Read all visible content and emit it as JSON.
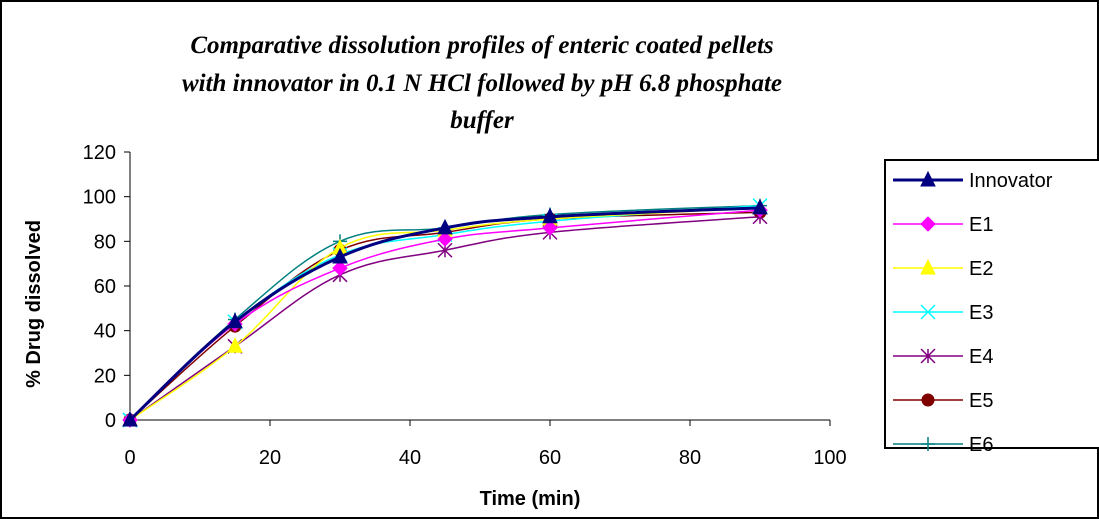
{
  "chart_data": {
    "type": "line",
    "title_lines": [
      "Comparative dissolution profiles of enteric coated pellets",
      "with innovator in 0.1 N HCl followed by pH 6.8 phosphate",
      "buffer"
    ],
    "xlabel": "Time (min)",
    "ylabel": "% Drug dissolved",
    "xlim": [
      0,
      100
    ],
    "ylim": [
      0,
      120
    ],
    "xticks": [
      0,
      20,
      40,
      60,
      80,
      100
    ],
    "yticks": [
      0,
      20,
      40,
      60,
      80,
      100,
      120
    ],
    "grid": false,
    "legend_position": "right",
    "x": [
      0,
      15,
      30,
      45,
      60,
      90
    ],
    "series": [
      {
        "name": "Innovator",
        "color": "#000080",
        "marker": "triangle",
        "values": [
          0,
          44,
          73,
          86,
          91,
          95
        ]
      },
      {
        "name": "E1",
        "color": "#FF00FF",
        "marker": "diamond",
        "values": [
          0,
          43,
          68,
          81,
          86,
          94
        ]
      },
      {
        "name": "E2",
        "color": "#FFFF00",
        "marker": "triangle",
        "values": [
          0,
          33,
          77,
          85,
          90,
          95
        ]
      },
      {
        "name": "E3",
        "color": "#00FFFF",
        "marker": "x",
        "values": [
          0,
          44,
          74,
          83,
          89,
          96
        ]
      },
      {
        "name": "E4",
        "color": "#800080",
        "marker": "asterisk",
        "values": [
          0,
          33,
          65,
          76,
          84,
          91
        ]
      },
      {
        "name": "E5",
        "color": "#800000",
        "marker": "circle",
        "values": [
          0,
          42,
          76,
          84,
          90,
          93
        ]
      },
      {
        "name": "E6",
        "color": "#008080",
        "marker": "plus",
        "values": [
          0,
          45,
          80,
          86,
          92,
          96
        ]
      }
    ]
  }
}
